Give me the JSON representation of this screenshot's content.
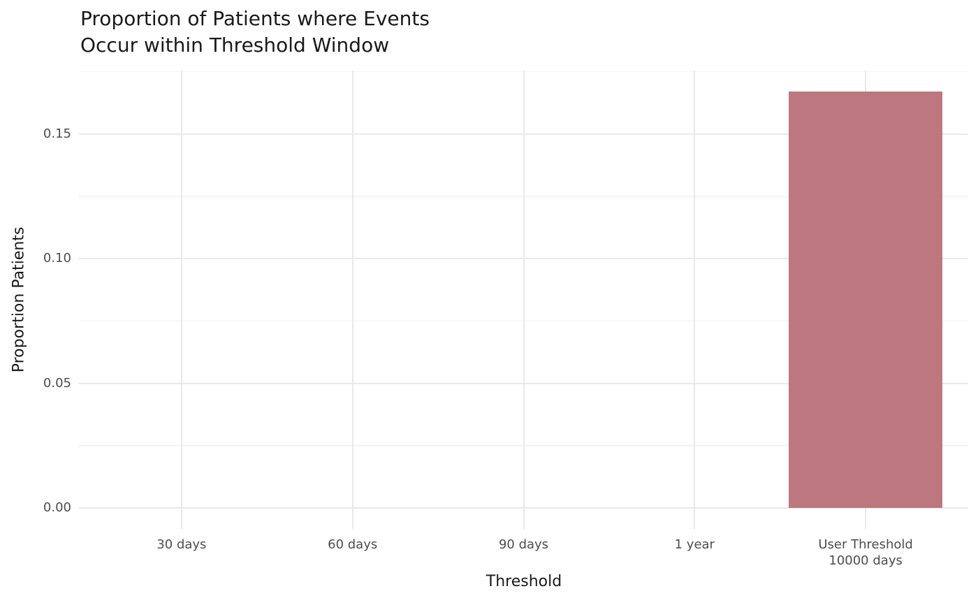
{
  "chart_data": {
    "type": "bar",
    "title": "Proportion of Patients where Events\nOccur within Threshold Window",
    "xlabel": "Threshold",
    "ylabel": "Proportion Patients",
    "categories": [
      "30 days",
      "60 days",
      "90 days",
      "1 year",
      "User Threshold\n10000 days"
    ],
    "values": [
      0,
      0,
      0,
      0,
      0.167
    ],
    "y_ticks": [
      0.0,
      0.05,
      0.1,
      0.15
    ],
    "y_tick_labels": [
      "0.00",
      "0.05",
      "0.10",
      "0.15"
    ],
    "y_minor_ticks": [
      0.025,
      0.075,
      0.125,
      0.175
    ],
    "ylim": [
      -0.0084,
      0.1754
    ],
    "x_expand": 0.6,
    "bar_width_ratio": 0.9,
    "grid": "major+minor",
    "legend": "none",
    "colors": {
      "bar_fill": "#bc787e",
      "grid_major": "#e9e9e9",
      "grid_minor": "#f3f3f3",
      "tick_text": "#4d4d4d",
      "title_text": "#1a1a1a",
      "background": "#ffffff"
    }
  }
}
